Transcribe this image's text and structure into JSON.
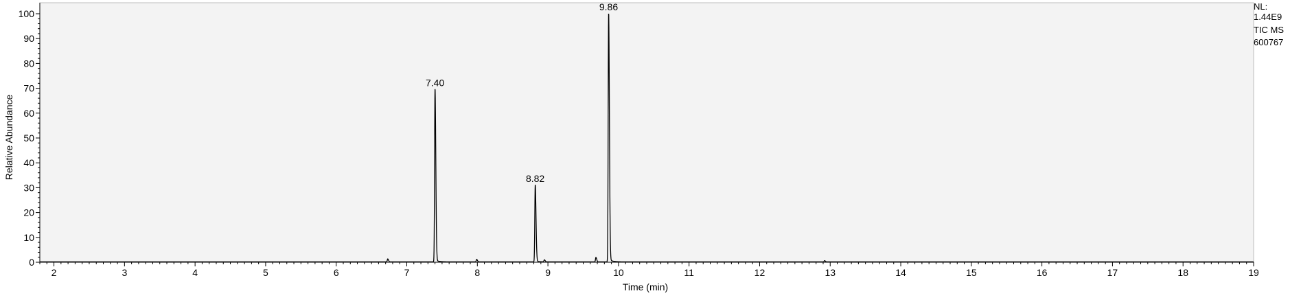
{
  "chart_data": {
    "type": "line",
    "xlabel": "Time (min)",
    "ylabel": "Relative Abundance",
    "xlim": [
      1.8,
      19.0
    ],
    "ylim": [
      0,
      100
    ],
    "x_ticks": [
      2,
      3,
      4,
      5,
      6,
      7,
      8,
      9,
      10,
      11,
      12,
      13,
      14,
      15,
      16,
      17,
      18,
      19
    ],
    "y_ticks": [
      0,
      10,
      20,
      30,
      40,
      50,
      60,
      70,
      80,
      90,
      100
    ],
    "grid": false,
    "plot_background": "#f3f3f3",
    "line_color": "#000000",
    "info": [
      "NL:",
      "1.44E9",
      "TIC  MS",
      "600767"
    ],
    "peaks": [
      {
        "x": 6.73,
        "y": 1.2
      },
      {
        "x": 7.4,
        "y": 69.5,
        "label": "7.40"
      },
      {
        "x": 7.99,
        "y": 1.0
      },
      {
        "x": 8.82,
        "y": 31.0,
        "label": "8.82"
      },
      {
        "x": 8.95,
        "y": 0.8
      },
      {
        "x": 9.68,
        "y": 1.8
      },
      {
        "x": 9.86,
        "y": 100.0,
        "label": "9.86"
      },
      {
        "x": 12.92,
        "y": 0.5
      }
    ]
  }
}
